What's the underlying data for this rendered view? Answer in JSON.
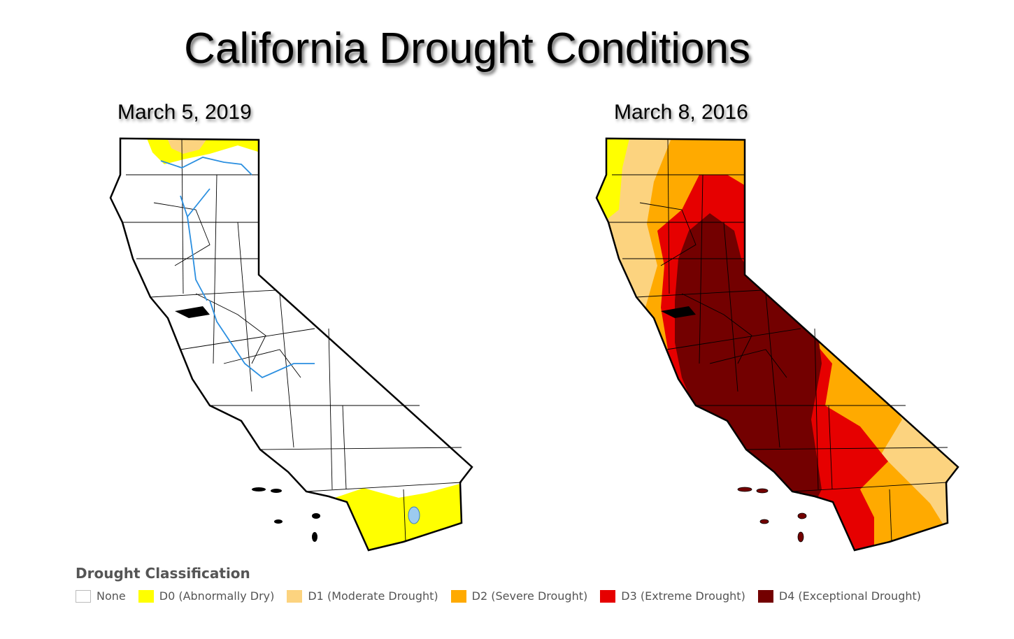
{
  "title": "California Drought Conditions",
  "maps": [
    {
      "date": "March 5, 2019"
    },
    {
      "date": "March 8, 2016"
    }
  ],
  "legend": {
    "title": "Drought Classification",
    "items": [
      {
        "label": "None",
        "color": "#ffffff"
      },
      {
        "label": "D0 (Abnormally Dry)",
        "color": "#ffff00"
      },
      {
        "label": "D1 (Moderate Drought)",
        "color": "#fcd37f"
      },
      {
        "label": "D2 (Severe Drought)",
        "color": "#ffaa00"
      },
      {
        "label": "D3 (Extreme Drought)",
        "color": "#e60000"
      },
      {
        "label": "D4 (Exceptional Drought)",
        "color": "#730000"
      }
    ]
  },
  "colors": {
    "county_border": "#000000",
    "river": "#2b8fe0",
    "lake": "#9ccbf0"
  }
}
